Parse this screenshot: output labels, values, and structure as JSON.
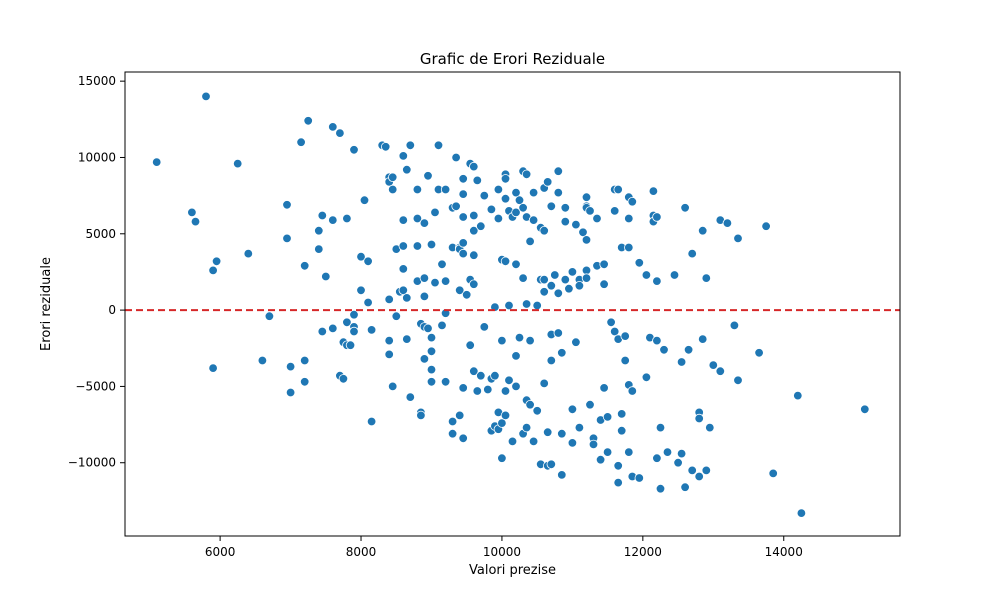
{
  "chart_data": {
    "type": "scatter",
    "title": "Grafic de Erori Reziduale",
    "xlabel": "Valori prezise",
    "ylabel": "Erori reziduale",
    "xlim": [
      4650,
      15650
    ],
    "ylim": [
      -14800,
      15600
    ],
    "xticks": [
      6000,
      8000,
      10000,
      12000,
      14000
    ],
    "yticks": [
      -10000,
      -5000,
      0,
      5000,
      10000,
      15000
    ],
    "xtick_labels": [
      "6000",
      "8000",
      "10000",
      "12000",
      "14000"
    ],
    "ytick_labels": [
      "−10000",
      "−5000",
      "0",
      "5000",
      "10000",
      "15000"
    ],
    "reference_line": {
      "y": 0,
      "color": "#d62728",
      "style": "dashed"
    },
    "point_color": "#1f77b4",
    "grid": false,
    "points": [
      [
        5100,
        9700
      ],
      [
        5600,
        6400
      ],
      [
        5650,
        5800
      ],
      [
        5800,
        14000
      ],
      [
        5900,
        2600
      ],
      [
        5950,
        3200
      ],
      [
        5900,
        -3800
      ],
      [
        6250,
        9600
      ],
      [
        6400,
        3700
      ],
      [
        6600,
        -3300
      ],
      [
        6700,
        -400
      ],
      [
        6950,
        6900
      ],
      [
        6950,
        4700
      ],
      [
        7000,
        -5400
      ],
      [
        7000,
        -3700
      ],
      [
        7150,
        11000
      ],
      [
        7200,
        2900
      ],
      [
        7200,
        -3300
      ],
      [
        7200,
        -4700
      ],
      [
        7250,
        12400
      ],
      [
        7400,
        4000
      ],
      [
        7400,
        5200
      ],
      [
        7450,
        6200
      ],
      [
        7450,
        -1400
      ],
      [
        7500,
        2200
      ],
      [
        7600,
        12000
      ],
      [
        7600,
        5900
      ],
      [
        7600,
        -1200
      ],
      [
        7700,
        11600
      ],
      [
        7700,
        -4300
      ],
      [
        7750,
        -4500
      ],
      [
        7800,
        6000
      ],
      [
        7800,
        -800
      ],
      [
        7750,
        -2100
      ],
      [
        7800,
        -2300
      ],
      [
        7850,
        -2300
      ],
      [
        7900,
        10500
      ],
      [
        7900,
        -1100
      ],
      [
        7900,
        -1400
      ],
      [
        7900,
        -300
      ],
      [
        8000,
        3500
      ],
      [
        8000,
        1300
      ],
      [
        8050,
        7200
      ],
      [
        8100,
        3200
      ],
      [
        8100,
        500
      ],
      [
        8150,
        -1300
      ],
      [
        8150,
        -7300
      ],
      [
        8300,
        10800
      ],
      [
        8350,
        10700
      ],
      [
        8400,
        8700
      ],
      [
        8400,
        8400
      ],
      [
        8400,
        700
      ],
      [
        8400,
        -2000
      ],
      [
        8400,
        -2900
      ],
      [
        8450,
        8700
      ],
      [
        8450,
        7900
      ],
      [
        8450,
        -5000
      ],
      [
        8500,
        4000
      ],
      [
        8500,
        -400
      ],
      [
        8550,
        1200
      ],
      [
        8600,
        10100
      ],
      [
        8600,
        5900
      ],
      [
        8600,
        4200
      ],
      [
        8600,
        2700
      ],
      [
        8600,
        1300
      ],
      [
        8650,
        9200
      ],
      [
        8650,
        800
      ],
      [
        8650,
        -1900
      ],
      [
        8700,
        10800
      ],
      [
        8700,
        -5700
      ],
      [
        8800,
        6000
      ],
      [
        8800,
        4200
      ],
      [
        8800,
        1900
      ],
      [
        8800,
        7900
      ],
      [
        8850,
        -6700
      ],
      [
        8850,
        -6900
      ],
      [
        8850,
        -900
      ],
      [
        8900,
        5700
      ],
      [
        8900,
        2100
      ],
      [
        8900,
        900
      ],
      [
        8900,
        -1100
      ],
      [
        8900,
        -3200
      ],
      [
        8950,
        8800
      ],
      [
        8950,
        -1200
      ],
      [
        9000,
        4300
      ],
      [
        9000,
        -1800
      ],
      [
        9000,
        -2700
      ],
      [
        9000,
        -4700
      ],
      [
        9000,
        -3900
      ],
      [
        9050,
        6400
      ],
      [
        9050,
        1800
      ],
      [
        9100,
        10800
      ],
      [
        9100,
        7900
      ],
      [
        9150,
        3000
      ],
      [
        9150,
        -1000
      ],
      [
        9200,
        7900
      ],
      [
        9200,
        1900
      ],
      [
        9200,
        -200
      ],
      [
        9200,
        -4700
      ],
      [
        9300,
        6700
      ],
      [
        9300,
        4100
      ],
      [
        9300,
        -8100
      ],
      [
        9300,
        -7300
      ],
      [
        9350,
        10000
      ],
      [
        9350,
        6800
      ],
      [
        9400,
        4100
      ],
      [
        9400,
        4000
      ],
      [
        9400,
        1300
      ],
      [
        9400,
        -6900
      ],
      [
        9450,
        8600
      ],
      [
        9450,
        7600
      ],
      [
        9450,
        6100
      ],
      [
        9450,
        4400
      ],
      [
        9450,
        3700
      ],
      [
        9450,
        -5100
      ],
      [
        9450,
        -8400
      ],
      [
        9500,
        1000
      ],
      [
        9550,
        9600
      ],
      [
        9550,
        2000
      ],
      [
        9550,
        -2300
      ],
      [
        9600,
        9400
      ],
      [
        9600,
        6200
      ],
      [
        9600,
        5200
      ],
      [
        9600,
        3600
      ],
      [
        9600,
        1700
      ],
      [
        9600,
        -4000
      ],
      [
        9650,
        8500
      ],
      [
        9650,
        -5300
      ],
      [
        9700,
        5500
      ],
      [
        9700,
        -4300
      ],
      [
        9750,
        7500
      ],
      [
        9750,
        -1100
      ],
      [
        9800,
        -5200
      ],
      [
        9850,
        6600
      ],
      [
        9850,
        -4500
      ],
      [
        9850,
        -7900
      ],
      [
        9900,
        200
      ],
      [
        9900,
        -4300
      ],
      [
        9900,
        -7600
      ],
      [
        9950,
        7900
      ],
      [
        9950,
        6000
      ],
      [
        9950,
        -6700
      ],
      [
        9950,
        -7800
      ],
      [
        10000,
        3300
      ],
      [
        10000,
        -2000
      ],
      [
        10000,
        -7400
      ],
      [
        10000,
        -9700
      ],
      [
        10050,
        8900
      ],
      [
        10050,
        8600
      ],
      [
        10050,
        7300
      ],
      [
        10050,
        3200
      ],
      [
        10050,
        -5300
      ],
      [
        10050,
        -6900
      ],
      [
        10100,
        6500
      ],
      [
        10100,
        300
      ],
      [
        10100,
        -4600
      ],
      [
        10150,
        6100
      ],
      [
        10150,
        -8600
      ],
      [
        10200,
        7700
      ],
      [
        10200,
        6400
      ],
      [
        10200,
        3000
      ],
      [
        10200,
        -3000
      ],
      [
        10200,
        -5000
      ],
      [
        10250,
        7200
      ],
      [
        10250,
        -1800
      ],
      [
        10300,
        9100
      ],
      [
        10300,
        6700
      ],
      [
        10300,
        2100
      ],
      [
        10300,
        -8100
      ],
      [
        10350,
        8900
      ],
      [
        10350,
        6100
      ],
      [
        10350,
        400
      ],
      [
        10350,
        -5900
      ],
      [
        10350,
        -7700
      ],
      [
        10400,
        4500
      ],
      [
        10400,
        -2000
      ],
      [
        10400,
        -6200
      ],
      [
        10450,
        7700
      ],
      [
        10450,
        5900
      ],
      [
        10450,
        -8600
      ],
      [
        10500,
        300
      ],
      [
        10500,
        -6600
      ],
      [
        10550,
        5400
      ],
      [
        10550,
        2000
      ],
      [
        10550,
        -10100
      ],
      [
        10600,
        8000
      ],
      [
        10600,
        5200
      ],
      [
        10600,
        2000
      ],
      [
        10600,
        1200
      ],
      [
        10600,
        -4800
      ],
      [
        10650,
        8400
      ],
      [
        10650,
        -8000
      ],
      [
        10650,
        -10200
      ],
      [
        10700,
        6800
      ],
      [
        10700,
        1600
      ],
      [
        10700,
        -1600
      ],
      [
        10700,
        -3300
      ],
      [
        10700,
        -10100
      ],
      [
        10750,
        2300
      ],
      [
        10800,
        1100
      ],
      [
        10800,
        9100
      ],
      [
        10800,
        7700
      ],
      [
        10800,
        -1500
      ],
      [
        10850,
        -10800
      ],
      [
        10850,
        -2800
      ],
      [
        10850,
        -8100
      ],
      [
        10900,
        5800
      ],
      [
        10900,
        2000
      ],
      [
        10900,
        6700
      ],
      [
        10950,
        1400
      ],
      [
        11000,
        2500
      ],
      [
        11000,
        -6500
      ],
      [
        11000,
        -8700
      ],
      [
        11050,
        5600
      ],
      [
        11050,
        -2100
      ],
      [
        11100,
        2000
      ],
      [
        11100,
        -7700
      ],
      [
        11100,
        1600
      ],
      [
        11150,
        5100
      ],
      [
        11200,
        7400
      ],
      [
        11200,
        6800
      ],
      [
        11200,
        6700
      ],
      [
        11200,
        2600
      ],
      [
        11200,
        2100
      ],
      [
        11200,
        4600
      ],
      [
        11250,
        6500
      ],
      [
        11250,
        -6200
      ],
      [
        11300,
        -8400
      ],
      [
        11300,
        -8800
      ],
      [
        11350,
        6000
      ],
      [
        11350,
        2900
      ],
      [
        11400,
        -7200
      ],
      [
        11400,
        -9800
      ],
      [
        11450,
        3000
      ],
      [
        11450,
        1700
      ],
      [
        11450,
        -5100
      ],
      [
        11500,
        -9300
      ],
      [
        11500,
        -7000
      ],
      [
        11550,
        -800
      ],
      [
        11600,
        7900
      ],
      [
        11600,
        6500
      ],
      [
        11600,
        -1400
      ],
      [
        11650,
        7900
      ],
      [
        11650,
        -1900
      ],
      [
        11650,
        -10200
      ],
      [
        11650,
        -11300
      ],
      [
        11700,
        4100
      ],
      [
        11700,
        -6800
      ],
      [
        11700,
        -7900
      ],
      [
        11750,
        -3300
      ],
      [
        11750,
        -1700
      ],
      [
        11800,
        7400
      ],
      [
        11800,
        6000
      ],
      [
        11800,
        4100
      ],
      [
        11800,
        -4900
      ],
      [
        11800,
        -9300
      ],
      [
        11850,
        -5300
      ],
      [
        11850,
        7100
      ],
      [
        11850,
        -10900
      ],
      [
        11950,
        -11000
      ],
      [
        11950,
        3100
      ],
      [
        12050,
        2300
      ],
      [
        12050,
        -4400
      ],
      [
        12100,
        -1800
      ],
      [
        12150,
        7800
      ],
      [
        12150,
        6200
      ],
      [
        12150,
        5800
      ],
      [
        12200,
        1900
      ],
      [
        12200,
        6100
      ],
      [
        12200,
        -2000
      ],
      [
        12200,
        -9700
      ],
      [
        12250,
        -7700
      ],
      [
        12250,
        -11700
      ],
      [
        12300,
        -2600
      ],
      [
        12350,
        -9300
      ],
      [
        12450,
        2300
      ],
      [
        12500,
        -10000
      ],
      [
        12550,
        -3400
      ],
      [
        12550,
        -9400
      ],
      [
        12600,
        6700
      ],
      [
        12600,
        -11600
      ],
      [
        12650,
        -2600
      ],
      [
        12700,
        3700
      ],
      [
        12700,
        -10500
      ],
      [
        12800,
        -10900
      ],
      [
        12800,
        -6700
      ],
      [
        12800,
        -7100
      ],
      [
        12850,
        5200
      ],
      [
        12850,
        -1900
      ],
      [
        12900,
        -10500
      ],
      [
        12900,
        2100
      ],
      [
        12950,
        -7700
      ],
      [
        13000,
        -3600
      ],
      [
        13100,
        5900
      ],
      [
        13100,
        -4000
      ],
      [
        13200,
        5700
      ],
      [
        13300,
        -1000
      ],
      [
        13350,
        4700
      ],
      [
        13350,
        -4600
      ],
      [
        13650,
        -2800
      ],
      [
        13750,
        5500
      ],
      [
        13850,
        -10700
      ],
      [
        14200,
        -5600
      ],
      [
        14250,
        -13300
      ],
      [
        15150,
        -6500
      ]
    ]
  }
}
